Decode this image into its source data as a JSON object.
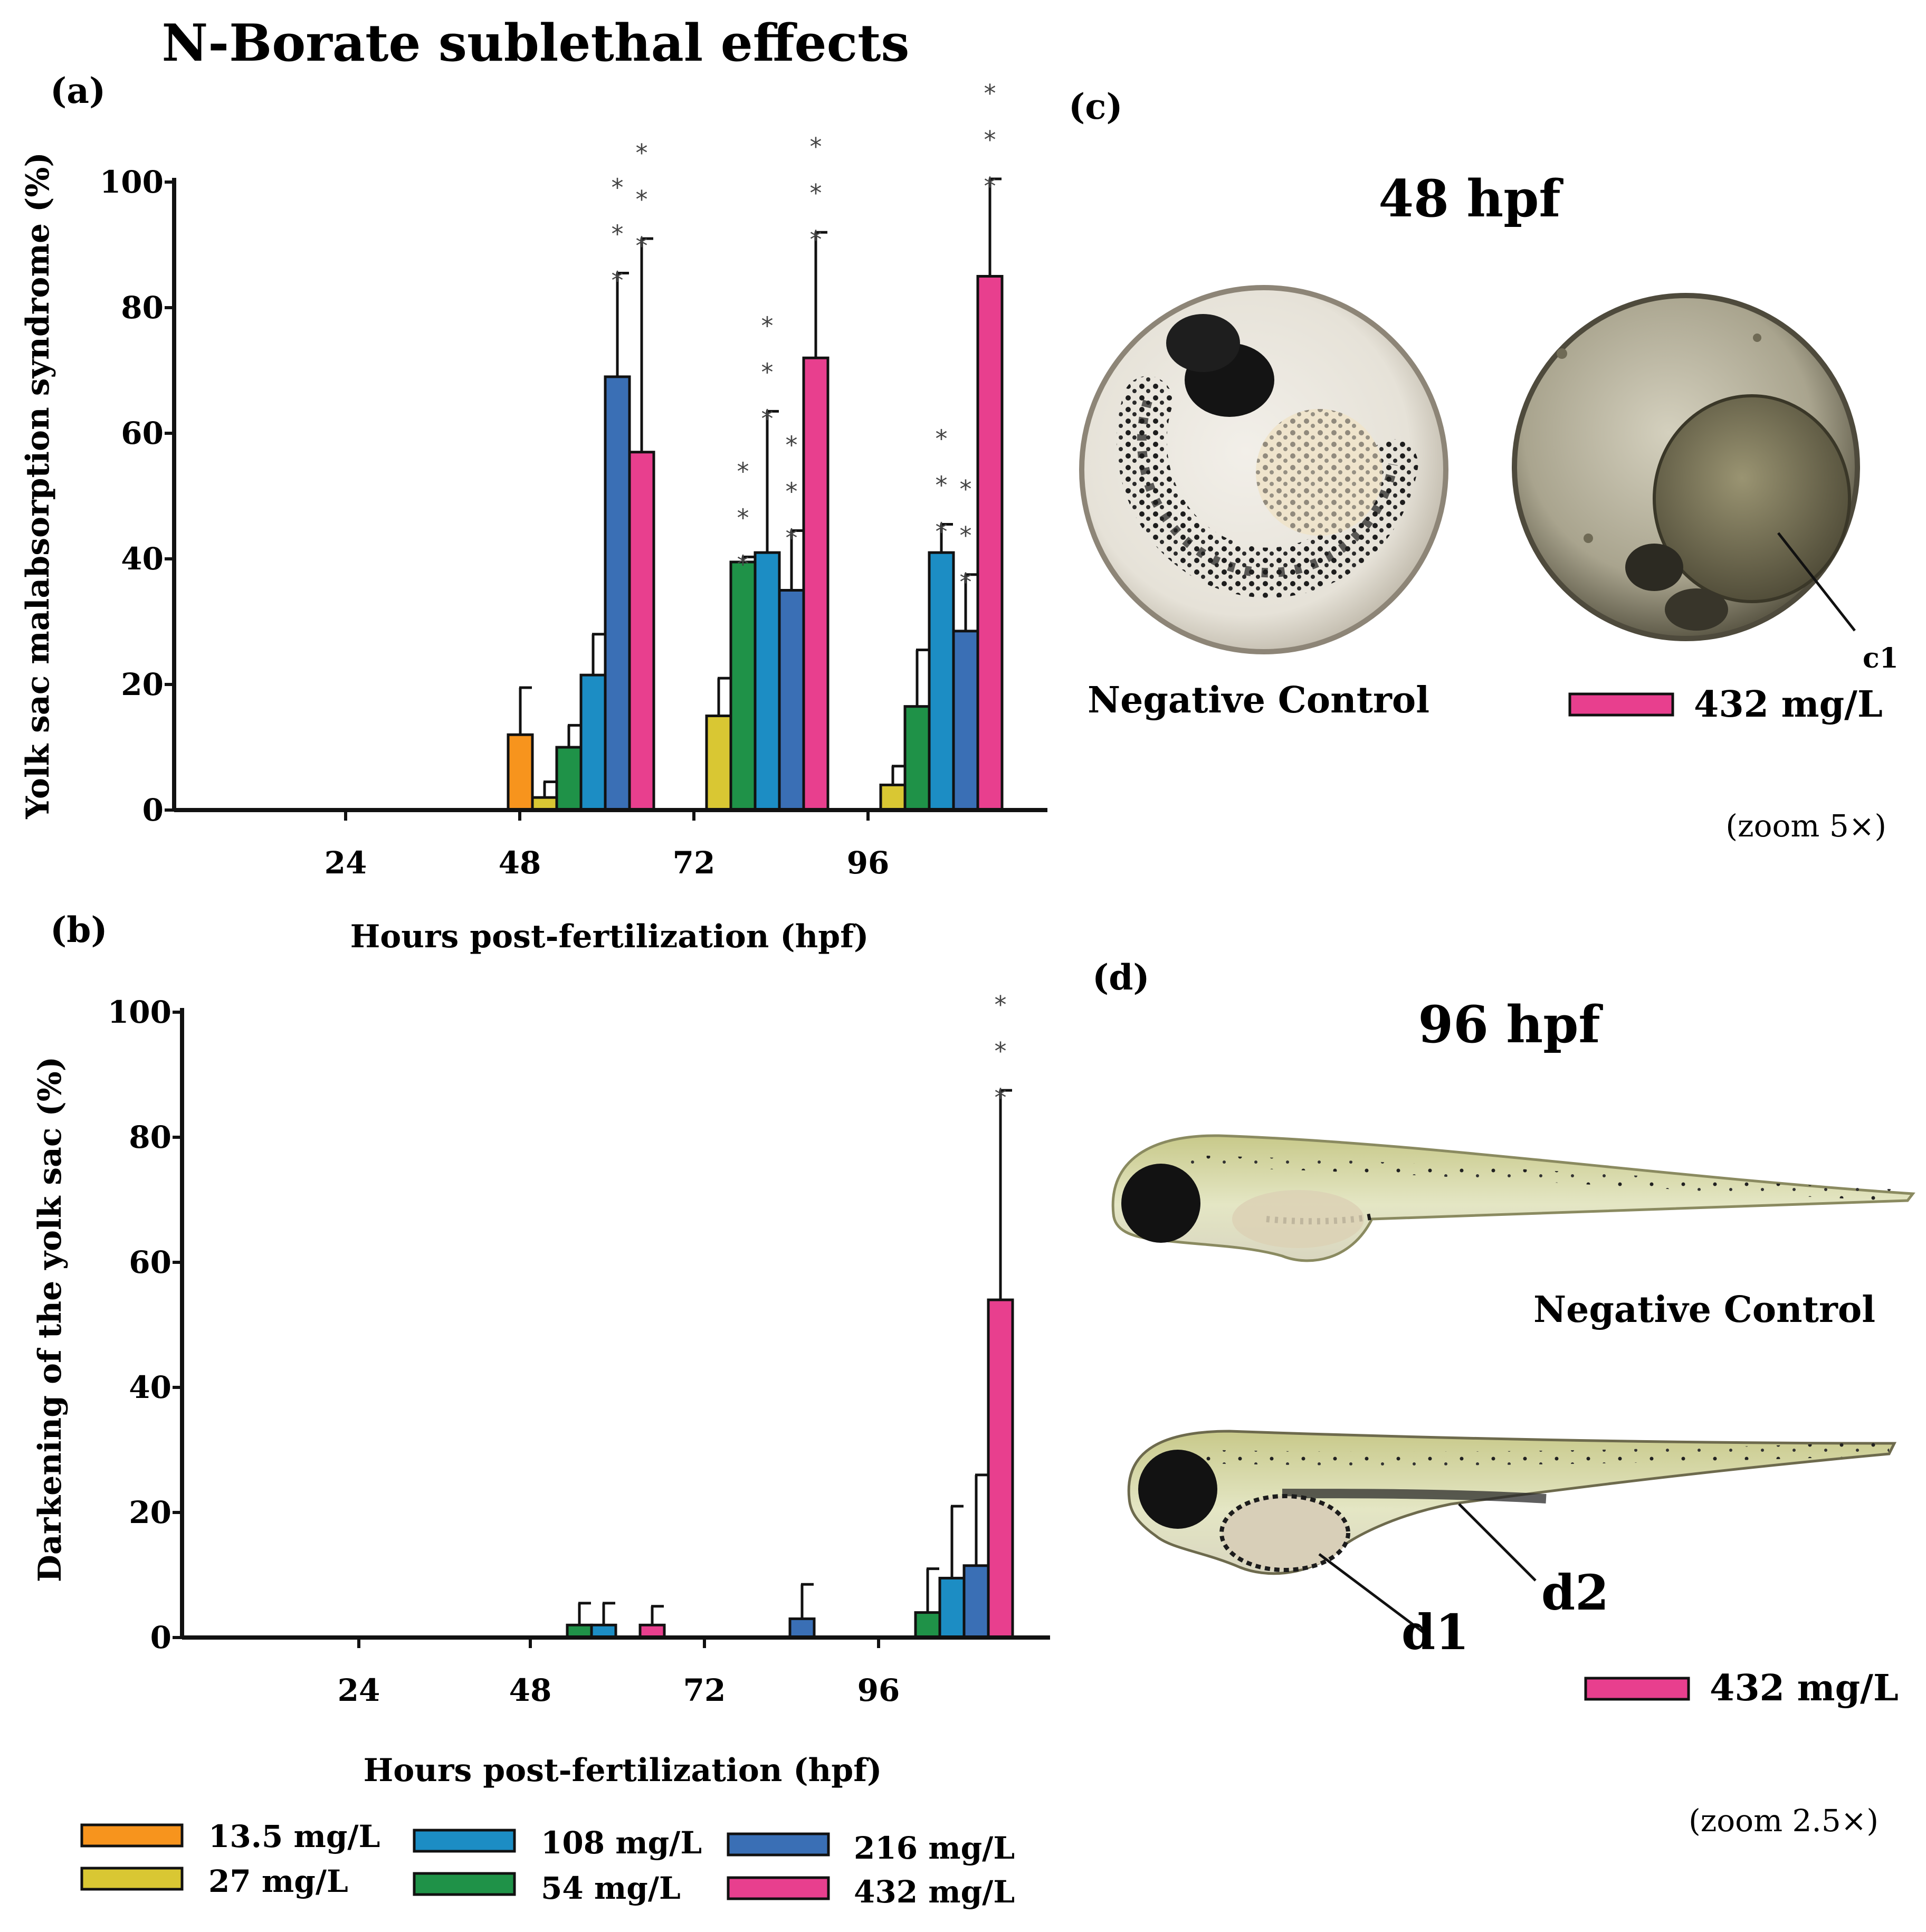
{
  "figure": {
    "title": "N-Borate sublethal effects",
    "panel_labels": {
      "a": "(a)",
      "b": "(b)",
      "c": "(c)",
      "d": "(d)"
    },
    "significance_marker": "***"
  },
  "colors": {
    "13.5": "#f7941d",
    "27": "#d9c733",
    "54": "#1f9248",
    "108": "#1c8dc4",
    "216": "#3a6fb5",
    "432": "#e83f8e"
  },
  "chart_data": [
    {
      "id": "a",
      "type": "bar",
      "ylabel": "Yolk sac malabsorption syndrome (%)",
      "xlabel": "Hours post-fertilization (hpf)",
      "categories": [
        "24",
        "48",
        "72",
        "96"
      ],
      "ylim": [
        0,
        100
      ],
      "yticks": [
        "0",
        "20",
        "40",
        "60",
        "80",
        "100"
      ],
      "series": [
        {
          "name": "13.5 mg/L",
          "key": "13.5",
          "values": [
            0,
            12,
            0,
            0
          ],
          "errors": [
            0,
            7.5,
            0,
            0
          ],
          "sig": [
            false,
            false,
            false,
            false
          ]
        },
        {
          "name": "27 mg/L",
          "key": "27",
          "values": [
            0,
            2,
            15,
            4
          ],
          "errors": [
            0,
            2.5,
            6,
            3
          ],
          "sig": [
            false,
            false,
            false,
            false
          ]
        },
        {
          "name": "54 mg/L",
          "key": "54",
          "values": [
            0,
            10,
            39.5,
            16.5
          ],
          "errors": [
            0,
            3.5,
            0.8,
            9
          ],
          "sig": [
            false,
            false,
            true,
            false
          ]
        },
        {
          "name": "108 mg/L",
          "key": "108",
          "values": [
            0,
            21.5,
            41,
            41
          ],
          "errors": [
            0,
            6.5,
            22.5,
            4.5
          ],
          "sig": [
            false,
            false,
            true,
            true
          ]
        },
        {
          "name": "216 mg/L",
          "key": "216",
          "values": [
            0,
            69,
            35,
            28.5
          ],
          "errors": [
            0,
            16.5,
            9.5,
            9
          ],
          "sig": [
            false,
            true,
            true,
            true
          ]
        },
        {
          "name": "432 mg/L",
          "key": "432",
          "values": [
            0,
            57,
            72,
            85
          ],
          "errors": [
            0,
            34,
            20,
            15.5
          ],
          "sig": [
            false,
            true,
            true,
            true
          ]
        }
      ]
    },
    {
      "id": "b",
      "type": "bar",
      "ylabel": "Darkening of the yolk sac (%)",
      "xlabel": "Hours post-fertilization (hpf)",
      "categories": [
        "24",
        "48",
        "72",
        "96"
      ],
      "ylim": [
        0,
        100
      ],
      "yticks": [
        "0",
        "20",
        "40",
        "60",
        "80",
        "100"
      ],
      "series": [
        {
          "name": "13.5 mg/L",
          "key": "13.5",
          "values": [
            0,
            0,
            0,
            0
          ],
          "errors": [
            0,
            0,
            0,
            0
          ],
          "sig": [
            false,
            false,
            false,
            false
          ]
        },
        {
          "name": "27 mg/L",
          "key": "27",
          "values": [
            0,
            0,
            0,
            0
          ],
          "errors": [
            0,
            0,
            0,
            0
          ],
          "sig": [
            false,
            false,
            false,
            false
          ]
        },
        {
          "name": "54 mg/L",
          "key": "54",
          "values": [
            0,
            2,
            0,
            4
          ],
          "errors": [
            0,
            3.5,
            0,
            7
          ],
          "sig": [
            false,
            false,
            false,
            false
          ]
        },
        {
          "name": "108 mg/L",
          "key": "108",
          "values": [
            0,
            2,
            0,
            9.5
          ],
          "errors": [
            0,
            3.5,
            0,
            11.5
          ],
          "sig": [
            false,
            false,
            false,
            false
          ]
        },
        {
          "name": "216 mg/L",
          "key": "216",
          "values": [
            0,
            0,
            3,
            11.5
          ],
          "errors": [
            0,
            0,
            5.5,
            14.5
          ],
          "sig": [
            false,
            false,
            false,
            false
          ]
        },
        {
          "name": "432 mg/L",
          "key": "432",
          "values": [
            0,
            2,
            0,
            54
          ],
          "errors": [
            0,
            3,
            0,
            33.5
          ],
          "sig": [
            false,
            false,
            false,
            true
          ]
        }
      ]
    }
  ],
  "legend": [
    {
      "label": "13.5 mg/L",
      "key": "13.5"
    },
    {
      "label": "27 mg/L",
      "key": "27"
    },
    {
      "label": "108 mg/L",
      "key": "108"
    },
    {
      "label": "54 mg/L",
      "key": "54"
    },
    {
      "label": "216 mg/L",
      "key": "216"
    },
    {
      "label": "432 mg/L",
      "key": "432"
    }
  ],
  "panel_c": {
    "time": "48 hpf",
    "control_label": "Negative Control",
    "treated_legend": "432 mg/L",
    "marker": "c1",
    "zoom": "(zoom 5×)"
  },
  "panel_d": {
    "time": "96 hpf",
    "control_label": "Negative Control",
    "treated_legend": "432 mg/L",
    "marker_1": "d1",
    "marker_2": "d2",
    "zoom": "(zoom 2.5×)"
  }
}
